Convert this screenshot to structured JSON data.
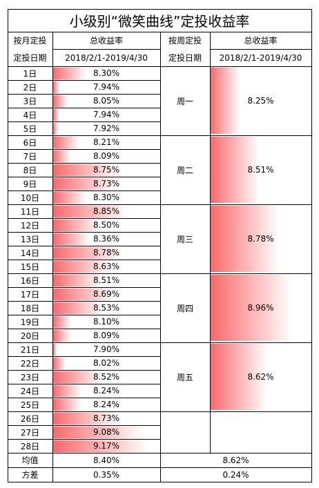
{
  "title": "小级别“微笑曲线”定投收益率",
  "header": {
    "monthly_label_line1": "按月定投",
    "monthly_label_line2": "定投日期",
    "weekly_label_line1": "按周定投",
    "weekly_label_line2": "定投日期",
    "return_label": "总收益率",
    "period": "2018/2/1-2019/4/30"
  },
  "monthly_rows": [
    {
      "day": "1日",
      "value": "8.30%",
      "rate": 8.3
    },
    {
      "day": "2日",
      "value": "7.94%",
      "rate": 7.94
    },
    {
      "day": "3日",
      "value": "8.05%",
      "rate": 8.05
    },
    {
      "day": "4日",
      "value": "7.94%",
      "rate": 7.94
    },
    {
      "day": "5日",
      "value": "7.92%",
      "rate": 7.92
    },
    {
      "day": "6日",
      "value": "8.21%",
      "rate": 8.21
    },
    {
      "day": "7日",
      "value": "8.09%",
      "rate": 8.09
    },
    {
      "day": "8日",
      "value": "8.75%",
      "rate": 8.75
    },
    {
      "day": "9日",
      "value": "8.73%",
      "rate": 8.73
    },
    {
      "day": "10日",
      "value": "8.30%",
      "rate": 8.3
    },
    {
      "day": "11日",
      "value": "8.85%",
      "rate": 8.85
    },
    {
      "day": "12日",
      "value": "8.50%",
      "rate": 8.5
    },
    {
      "day": "13日",
      "value": "8.36%",
      "rate": 8.36
    },
    {
      "day": "14日",
      "value": "8.78%",
      "rate": 8.78
    },
    {
      "day": "15日",
      "value": "8.63%",
      "rate": 8.63
    },
    {
      "day": "16日",
      "value": "8.51%",
      "rate": 8.51
    },
    {
      "day": "17日",
      "value": "8.69%",
      "rate": 8.69
    },
    {
      "day": "18日",
      "value": "8.53%",
      "rate": 8.53
    },
    {
      "day": "19日",
      "value": "8.10%",
      "rate": 8.1
    },
    {
      "day": "20日",
      "value": "8.09%",
      "rate": 8.09
    },
    {
      "day": "21日",
      "value": "7.90%",
      "rate": 7.9
    },
    {
      "day": "22日",
      "value": "8.02%",
      "rate": 8.02
    },
    {
      "day": "23日",
      "value": "8.52%",
      "rate": 8.52
    },
    {
      "day": "24日",
      "value": "8.24%",
      "rate": 8.24
    },
    {
      "day": "25日",
      "value": "8.24%",
      "rate": 8.24
    },
    {
      "day": "26日",
      "value": "8.73%",
      "rate": 8.73
    },
    {
      "day": "27日",
      "value": "9.08%",
      "rate": 9.08
    },
    {
      "day": "28日",
      "value": "9.17%",
      "rate": 9.17
    }
  ],
  "weekly_rows": [
    {
      "day": "周一",
      "value": "8.25%",
      "rate": 8.25
    },
    {
      "day": "周二",
      "value": "8.51%",
      "rate": 8.51
    },
    {
      "day": "周三",
      "value": "8.78%",
      "rate": 8.78
    },
    {
      "day": "周四",
      "value": "8.96%",
      "rate": 8.96
    },
    {
      "day": "周五",
      "value": "8.62%",
      "rate": 8.62
    }
  ],
  "summary": {
    "mean_label": "均值",
    "mean_monthly": "8.40%",
    "mean_weekly": "8.62%",
    "variance_label": "方差",
    "variance_monthly": "0.35%",
    "variance_weekly": "0.24%"
  },
  "colors": {
    "bar_start": "#f8696b",
    "bar_end": "#ffffff"
  }
}
